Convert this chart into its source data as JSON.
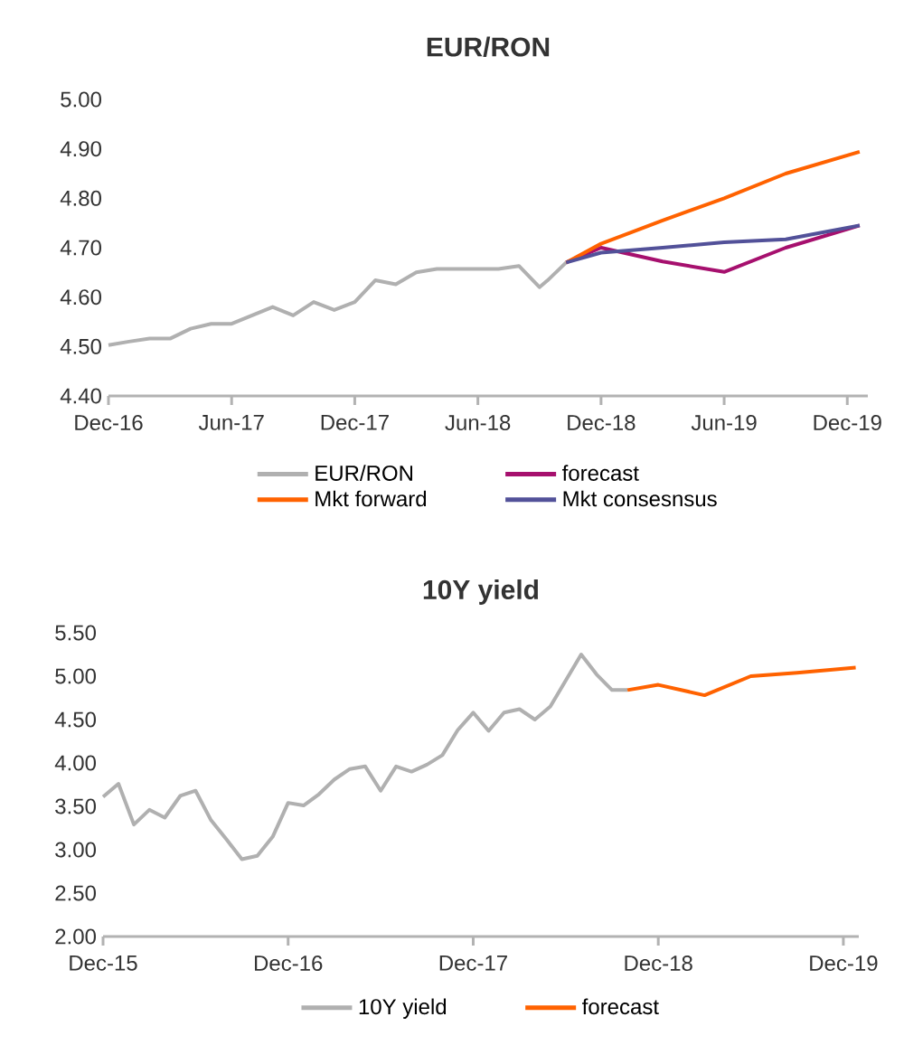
{
  "chart_data": [
    {
      "type": "line",
      "title": "EUR/RON",
      "legend": "bottom",
      "xlim": [
        "2016-12",
        "2020-01"
      ],
      "ylim": [
        4.4,
        5.0
      ],
      "xticks": [
        {
          "value": "2016-12",
          "label": "Dec-16"
        },
        {
          "value": "2017-06",
          "label": "Jun-17"
        },
        {
          "value": "2017-12",
          "label": "Dec-17"
        },
        {
          "value": "2018-06",
          "label": "Jun-18"
        },
        {
          "value": "2018-12",
          "label": "Dec-18"
        },
        {
          "value": "2019-06",
          "label": "Jun-19"
        },
        {
          "value": "2019-12",
          "label": "Dec-19"
        }
      ],
      "yticks": [
        {
          "value": 4.4,
          "label": "4.40"
        },
        {
          "value": 4.5,
          "label": "4.50"
        },
        {
          "value": 4.6,
          "label": "4.60"
        },
        {
          "value": 4.7,
          "label": "4.70"
        },
        {
          "value": 4.8,
          "label": "4.80"
        },
        {
          "value": 4.9,
          "label": "4.90"
        },
        {
          "value": 5.0,
          "label": "5.00"
        }
      ],
      "series": [
        {
          "name": "EUR/RON",
          "color": "#b0b0b0",
          "x": [
            "2016-12",
            "2017-01",
            "2017-02",
            "2017-03",
            "2017-04",
            "2017-05",
            "2017-06",
            "2017-07",
            "2017-08",
            "2017-09",
            "2017-10",
            "2017-11",
            "2017-12",
            "2018-01",
            "2018-02",
            "2018-03",
            "2018-04",
            "2018-05",
            "2018-06",
            "2018-07",
            "2018-08",
            "2018-09",
            "2018-09-13",
            "2018-10-10"
          ],
          "values": [
            4.503,
            4.51,
            4.516,
            4.516,
            4.536,
            4.546,
            4.546,
            4.563,
            4.58,
            4.563,
            4.59,
            4.574,
            4.59,
            4.634,
            4.626,
            4.65,
            4.657,
            4.657,
            4.657,
            4.657,
            4.663,
            4.62,
            4.634,
            4.67
          ]
        },
        {
          "name": "forecast",
          "color": "#a6106e",
          "x": [
            "2018-10-10",
            "2018-12",
            "2019-03",
            "2019-06",
            "2019-09",
            "2019-12-19"
          ],
          "values": [
            4.67,
            4.7,
            4.672,
            4.651,
            4.7,
            4.745
          ]
        },
        {
          "name": "Mkt forward",
          "color": "#ff6200",
          "x": [
            "2018-10-10",
            "2018-12",
            "2019-03",
            "2019-06",
            "2019-09",
            "2019-12-19"
          ],
          "values": [
            4.67,
            4.708,
            4.755,
            4.8,
            4.85,
            4.894
          ]
        },
        {
          "name": "Mkt consesnsus",
          "color": "#525199",
          "x": [
            "2018-10-10",
            "2018-12",
            "2019-03",
            "2019-06",
            "2019-09",
            "2019-12-19"
          ],
          "values": [
            4.67,
            4.69,
            4.7,
            4.711,
            4.717,
            4.745
          ]
        }
      ]
    },
    {
      "type": "line",
      "title": "10Y yield",
      "legend": "bottom",
      "xlim": [
        "2015-12",
        "2020-01"
      ],
      "ylim": [
        2.0,
        5.5
      ],
      "xticks": [
        {
          "value": "2015-12",
          "label": "Dec-15"
        },
        {
          "value": "2016-12",
          "label": "Dec-16"
        },
        {
          "value": "2017-12",
          "label": "Dec-17"
        },
        {
          "value": "2018-12",
          "label": "Dec-18"
        },
        {
          "value": "2019-12",
          "label": "Dec-19"
        }
      ],
      "yticks": [
        {
          "value": 2.0,
          "label": "2.00"
        },
        {
          "value": 2.5,
          "label": "2.50"
        },
        {
          "value": 3.0,
          "label": "3.00"
        },
        {
          "value": 3.5,
          "label": "3.50"
        },
        {
          "value": 4.0,
          "label": "4.00"
        },
        {
          "value": 4.5,
          "label": "4.50"
        },
        {
          "value": 5.0,
          "label": "5.00"
        },
        {
          "value": 5.5,
          "label": "5.50"
        }
      ],
      "series": [
        {
          "name": "10Y yield",
          "color": "#b0b0b0",
          "x": [
            "2015-12",
            "2016-01",
            "2016-02",
            "2016-03",
            "2016-04",
            "2016-05",
            "2016-06",
            "2016-07",
            "2016-08",
            "2016-09",
            "2016-10",
            "2016-11",
            "2016-12",
            "2017-01",
            "2017-02",
            "2017-03",
            "2017-04",
            "2017-05",
            "2017-06",
            "2017-07",
            "2017-08",
            "2017-09",
            "2017-10",
            "2017-11",
            "2017-12",
            "2018-01",
            "2018-02",
            "2018-03",
            "2018-04",
            "2018-05",
            "2018-06",
            "2018-07",
            "2018-08",
            "2018-09",
            "2018-10"
          ],
          "values": [
            3.61,
            3.76,
            3.29,
            3.46,
            3.37,
            3.62,
            3.68,
            3.34,
            3.12,
            2.89,
            2.93,
            3.15,
            3.54,
            3.51,
            3.64,
            3.81,
            3.93,
            3.96,
            3.68,
            3.96,
            3.9,
            3.98,
            4.09,
            4.38,
            4.58,
            4.37,
            4.58,
            4.62,
            4.5,
            4.65,
            4.95,
            5.25,
            5.02,
            4.84,
            4.84
          ]
        },
        {
          "name": "forecast",
          "color": "#ff6200",
          "x": [
            "2018-10",
            "2018-12",
            "2019-03",
            "2019-06",
            "2019-09",
            "2019-12-25"
          ],
          "values": [
            4.84,
            4.9,
            4.78,
            5.0,
            5.04,
            5.1
          ]
        }
      ]
    }
  ]
}
